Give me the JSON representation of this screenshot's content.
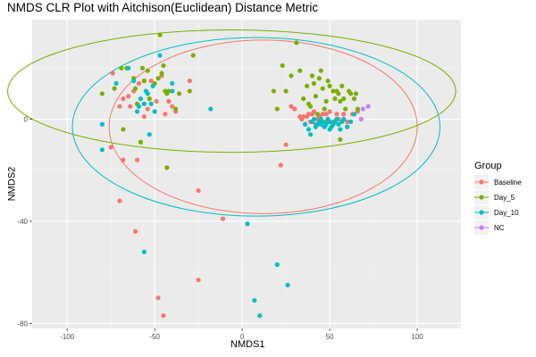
{
  "chart_data": {
    "type": "scatter",
    "title": "NMDS CLR Plot with Aitchison(Euclidean) Distance Metric",
    "xlabel": "NMDS1",
    "ylabel": "NMDS2",
    "xlim": [
      -120,
      125
    ],
    "ylim": [
      -82,
      39
    ],
    "xticks": [
      -100,
      -50,
      0,
      50,
      100
    ],
    "yticks": [
      -80,
      -40,
      0
    ],
    "grid": true,
    "legend": {
      "title": "Group",
      "position": "right"
    },
    "series": [
      {
        "name": "Baseline",
        "color": "#F8766D",
        "points": [
          [
            -75,
            -11
          ],
          [
            -70,
            -32
          ],
          [
            -68,
            -16
          ],
          [
            -65,
            9
          ],
          [
            -61,
            -44
          ],
          [
            -60,
            -16
          ],
          [
            -52,
            15
          ],
          [
            -48,
            -70
          ],
          [
            -45,
            -77
          ],
          [
            -44,
            2
          ],
          [
            -46,
            17
          ],
          [
            -38,
            3
          ],
          [
            -25,
            -28
          ],
          [
            -25,
            -63
          ],
          [
            -11,
            -39
          ],
          [
            -74,
            18
          ],
          [
            -70,
            5
          ],
          [
            -68,
            8
          ],
          [
            -64,
            5
          ],
          [
            -62,
            11
          ],
          [
            -56,
            1
          ],
          [
            -54,
            4
          ],
          [
            -49,
            7
          ],
          [
            -42,
            7
          ],
          [
            -40,
            5
          ],
          [
            22,
            -18
          ],
          [
            25,
            -10
          ],
          [
            28,
            5
          ],
          [
            30,
            4
          ],
          [
            33,
            1
          ],
          [
            35,
            1
          ],
          [
            38,
            2
          ],
          [
            39,
            -1
          ],
          [
            40,
            2
          ],
          [
            41,
            3
          ],
          [
            43,
            0
          ],
          [
            44,
            1
          ],
          [
            45,
            -1
          ],
          [
            47,
            4
          ],
          [
            48,
            2
          ],
          [
            50,
            3
          ],
          [
            42,
            -2
          ],
          [
            37,
            1
          ],
          [
            52,
            -1
          ],
          [
            55,
            0
          ],
          [
            58,
            2
          ],
          [
            60,
            -1
          ],
          [
            63,
            2
          ],
          [
            66,
            3
          ],
          [
            36,
            -2
          ],
          [
            34,
            0
          ],
          [
            46,
            2
          ],
          [
            49,
            0
          ],
          [
            54,
            2
          ],
          [
            -30,
            15
          ],
          [
            -59,
            14
          ]
        ]
      },
      {
        "name": "Day_5",
        "color": "#7CAE00",
        "points": [
          [
            -80,
            10
          ],
          [
            -73,
            12
          ],
          [
            -69,
            20
          ],
          [
            -66,
            20
          ],
          [
            -62,
            16
          ],
          [
            -61,
            12
          ],
          [
            -60,
            6
          ],
          [
            -57,
            20
          ],
          [
            -56,
            15
          ],
          [
            -54,
            19
          ],
          [
            -53,
            8
          ],
          [
            -50,
            14
          ],
          [
            -48,
            16
          ],
          [
            -46,
            18
          ],
          [
            -45,
            21
          ],
          [
            -44,
            11
          ],
          [
            -43,
            10
          ],
          [
            -42,
            11
          ],
          [
            -47,
            33
          ],
          [
            -38,
            4
          ],
          [
            -36,
            10
          ],
          [
            -30,
            11
          ],
          [
            -28,
            25
          ],
          [
            -68,
            -4
          ],
          [
            -58,
            -9
          ],
          [
            -43,
            -19
          ],
          [
            18,
            11
          ],
          [
            20,
            4
          ],
          [
            23,
            21
          ],
          [
            25,
            11
          ],
          [
            28,
            17
          ],
          [
            31,
            30
          ],
          [
            33,
            19
          ],
          [
            35,
            8
          ],
          [
            37,
            13
          ],
          [
            39,
            5
          ],
          [
            40,
            17
          ],
          [
            41,
            14
          ],
          [
            43,
            2
          ],
          [
            44,
            16
          ],
          [
            45,
            19
          ],
          [
            46,
            12
          ],
          [
            47,
            4
          ],
          [
            48,
            7
          ],
          [
            49,
            15
          ],
          [
            50,
            13
          ],
          [
            52,
            11
          ],
          [
            53,
            8
          ],
          [
            54,
            11
          ],
          [
            55,
            10
          ],
          [
            56,
            -8
          ],
          [
            57,
            13
          ],
          [
            58,
            8
          ],
          [
            59,
            4
          ],
          [
            60,
            -3
          ],
          [
            61,
            11
          ],
          [
            62,
            10
          ],
          [
            64,
            8
          ],
          [
            65,
            10
          ],
          [
            66,
            4
          ],
          [
            56,
            7
          ],
          [
            42,
            9
          ],
          [
            38,
            6
          ],
          [
            48,
            -1
          ]
        ]
      },
      {
        "name": "Day_10",
        "color": "#00BFC4",
        "points": [
          [
            -80,
            -2
          ],
          [
            -72,
            14
          ],
          [
            -65,
            20
          ],
          [
            -62,
            15
          ],
          [
            -60,
            3
          ],
          [
            -59,
            5
          ],
          [
            -58,
            8
          ],
          [
            -56,
            6
          ],
          [
            -55,
            11
          ],
          [
            -54,
            10
          ],
          [
            -52,
            6
          ],
          [
            -51,
            13
          ],
          [
            -50,
            3
          ],
          [
            -47,
            25
          ],
          [
            -40,
            14
          ],
          [
            -56,
            -52
          ],
          [
            -53,
            -6
          ],
          [
            -40,
            11
          ],
          [
            -80,
            -12
          ],
          [
            -18,
            4
          ],
          [
            3,
            -41
          ],
          [
            20,
            -57
          ],
          [
            26,
            -65
          ],
          [
            7,
            -71
          ],
          [
            10,
            -77
          ],
          [
            36,
            -2
          ],
          [
            38,
            -4
          ],
          [
            40,
            -1
          ],
          [
            42,
            -3
          ],
          [
            43,
            -2
          ],
          [
            44,
            -1
          ],
          [
            45,
            0
          ],
          [
            46,
            -1
          ],
          [
            47,
            -3
          ],
          [
            48,
            -2
          ],
          [
            49,
            0
          ],
          [
            50,
            -1
          ],
          [
            51,
            -3
          ],
          [
            52,
            -2
          ],
          [
            53,
            -1
          ],
          [
            54,
            0
          ],
          [
            55,
            -2
          ],
          [
            56,
            -4
          ],
          [
            57,
            -1
          ],
          [
            58,
            0
          ],
          [
            60,
            -3
          ],
          [
            62,
            -1
          ],
          [
            64,
            2
          ],
          [
            41,
            0
          ],
          [
            39,
            -6
          ],
          [
            45,
            -2
          ],
          [
            50,
            -4
          ]
        ]
      },
      {
        "name": "NC",
        "color": "#C77CFF",
        "points": [
          [
            68,
            0
          ],
          [
            69,
            4
          ],
          [
            72,
            5
          ]
        ]
      }
    ],
    "ellipses": [
      {
        "group": "Baseline",
        "color": "#F8766D",
        "cx": 12,
        "cy": -3,
        "rx": 88,
        "ry": 34
      },
      {
        "group": "Day_5",
        "color": "#7CAE00",
        "cx": -6,
        "cy": 11,
        "rx": 128,
        "ry": 24
      },
      {
        "group": "Day_10",
        "color": "#00BFC4",
        "cx": 8,
        "cy": -3,
        "rx": 105,
        "ry": 35
      }
    ]
  }
}
